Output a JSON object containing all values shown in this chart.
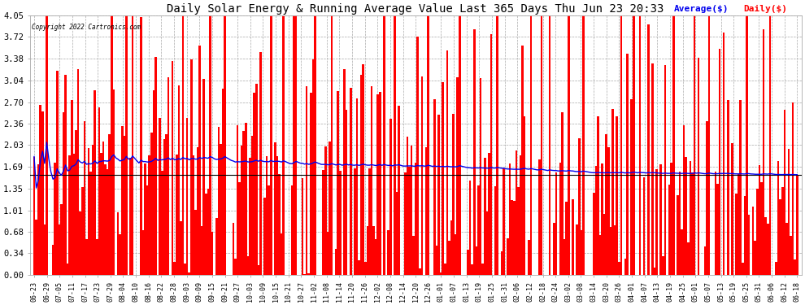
{
  "title": "Daily Solar Energy & Running Average Value Last 365 Days Thu Jun 23 20:33",
  "copyright_text": "Copyright 2022 Cartronics.com",
  "legend_avg": "Average($)",
  "legend_daily": "Daily($)",
  "yticks": [
    0.0,
    0.34,
    0.68,
    1.01,
    1.35,
    1.69,
    2.03,
    2.36,
    2.7,
    3.04,
    3.38,
    3.72,
    4.05
  ],
  "ylim_min": 0.0,
  "ylim_max": 4.05,
  "bar_color": "#ff0000",
  "avg_color": "#0000ee",
  "hline_color": "#000000",
  "bg_color": "#ffffff",
  "grid_color": "#aaaaaa",
  "title_fontsize": 10,
  "xtick_fontsize": 6.0,
  "ytick_fontsize": 7.5,
  "avg_legend_color": "#0000ee",
  "daily_legend_color": "#ff0000",
  "xtick_labels": [
    "06-23",
    "06-29",
    "07-05",
    "07-11",
    "07-17",
    "07-23",
    "07-29",
    "08-04",
    "08-10",
    "08-16",
    "08-22",
    "08-28",
    "09-03",
    "09-09",
    "09-15",
    "09-21",
    "09-27",
    "10-03",
    "10-09",
    "10-15",
    "10-21",
    "10-27",
    "11-02",
    "11-08",
    "11-14",
    "11-20",
    "11-26",
    "12-02",
    "12-08",
    "12-14",
    "12-20",
    "12-26",
    "01-01",
    "01-07",
    "01-13",
    "01-19",
    "01-25",
    "01-31",
    "02-06",
    "02-12",
    "02-18",
    "02-24",
    "03-02",
    "03-08",
    "03-14",
    "03-20",
    "03-26",
    "04-01",
    "04-07",
    "04-13",
    "04-19",
    "04-25",
    "05-01",
    "05-07",
    "05-13",
    "05-19",
    "05-25",
    "05-31",
    "06-06",
    "06-12",
    "06-18"
  ]
}
